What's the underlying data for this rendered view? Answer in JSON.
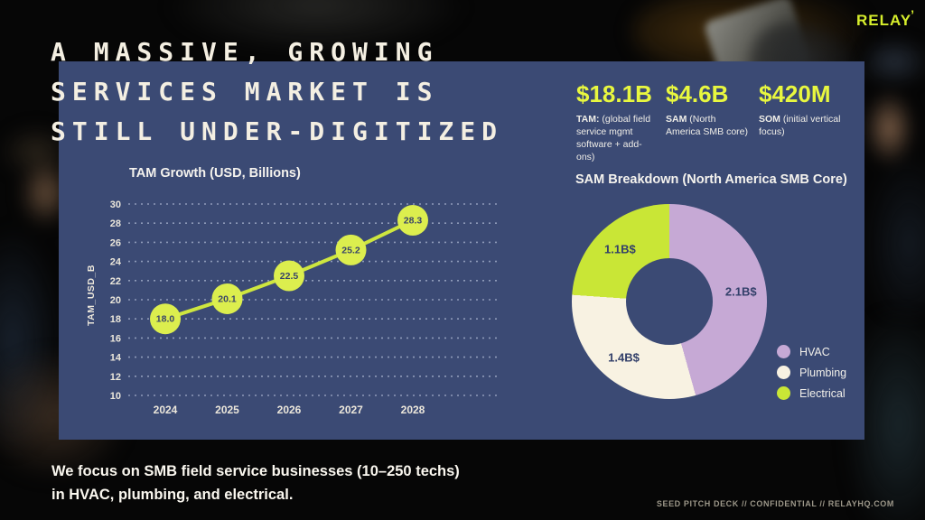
{
  "brand": {
    "logo": "RELAY",
    "tick": "’"
  },
  "title": {
    "lines": [
      "A MASSIVE, GROWING",
      "SERVICES MARKET IS",
      "STILL UNDER-DIGITIZED"
    ]
  },
  "stats": [
    {
      "value": "$18.1B",
      "term": "TAM:",
      "desc": "(global field service mgmt software + add-ons)"
    },
    {
      "value": "$4.6B",
      "term": "SAM",
      "desc": "(North America SMB core)"
    },
    {
      "value": "$420M",
      "term": "SOM",
      "desc": "(initial vertical focus)"
    }
  ],
  "chart_data": [
    {
      "type": "line",
      "title": "TAM Growth (USD, Billions)",
      "x": [
        2024,
        2025,
        2026,
        2027,
        2028
      ],
      "values": [
        18.0,
        20.1,
        22.5,
        25.2,
        28.3
      ],
      "point_labels": [
        "18.0",
        "20.1",
        "22.5",
        "25.2",
        "28.3"
      ],
      "xlabel": "",
      "ylabel": "TAM_USD_B",
      "yticks": [
        10,
        12,
        14,
        16,
        18,
        20,
        22,
        24,
        26,
        28,
        30
      ],
      "ylim": [
        10,
        30
      ],
      "grid": "horizontal-dotted",
      "line_color": "#cee63f",
      "marker_color": "#dcee4e"
    },
    {
      "type": "pie",
      "donut": true,
      "title": "SAM Breakdown (North America SMB Core)",
      "start": "top",
      "direction": "clockwise",
      "legend_position": "right",
      "slices": [
        {
          "label": "HVAC",
          "value": 2.1,
          "display": "2.1B$",
          "color": "#c6a9d5"
        },
        {
          "label": "Plumbing",
          "value": 1.4,
          "display": "1.4B$",
          "color": "#f8f2e2"
        },
        {
          "label": "Electrical",
          "value": 1.1,
          "display": "1.1B$",
          "color": "#c9e636"
        }
      ]
    }
  ],
  "focus_note": {
    "lines": [
      "We focus on SMB field service businesses (10–250 techs)",
      "in HVAC, plumbing, and electrical."
    ]
  },
  "footer": {
    "text": "SEED PITCH DECK // CONFIDENTIAL // RELAYHQ.COM"
  },
  "colors": {
    "panel_navy": "#3b4a74",
    "accent_chartreuse": "#e8f73f",
    "cream": "#f4efe2",
    "background": "#060606"
  }
}
